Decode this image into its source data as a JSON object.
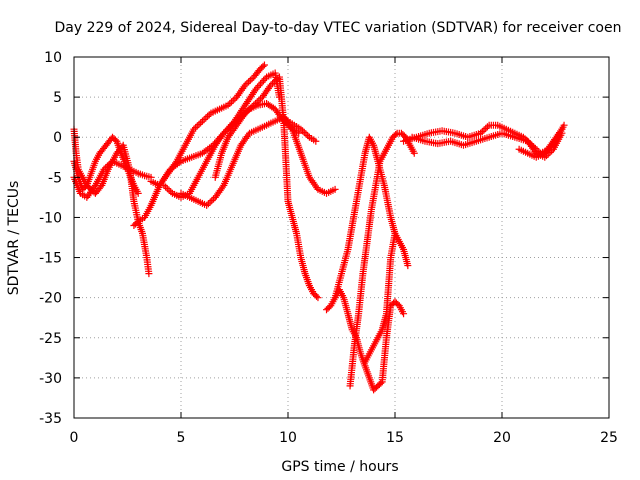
{
  "chart_data": {
    "type": "scatter",
    "title": "Day 229 of 2024, Sidereal Day-to-day VTEC variation (SDTVAR) for receiver coen",
    "xlabel": "GPS time / hours",
    "ylabel": "SDTVAR / TECUs",
    "xlim": [
      0,
      25
    ],
    "ylim": [
      -35,
      10
    ],
    "xticks": [
      0,
      5,
      10,
      15,
      20,
      25
    ],
    "yticks": [
      10,
      5,
      0,
      -5,
      -10,
      -15,
      -20,
      -25,
      -30,
      -35
    ],
    "xtick_labels": [
      "0",
      "5",
      "10",
      "15",
      "20",
      "25"
    ],
    "ytick_labels": [
      "10",
      "5",
      "0",
      "-5",
      "-10",
      "-15",
      "-20",
      "-25",
      "-30",
      "-35"
    ],
    "grid": true,
    "marker": "plus",
    "color": "#ff0000",
    "series": [
      {
        "name": "s1",
        "x": [
          0.0,
          0.1,
          0.2,
          0.4,
          0.6,
          0.8,
          1.0,
          1.3,
          1.6,
          2.0,
          2.3,
          2.6,
          2.8,
          3.0,
          3.2,
          3.4,
          3.5
        ],
        "y": [
          1.0,
          -2.0,
          -4.0,
          -5.0,
          -6.0,
          -6.5,
          -7.0,
          -6.0,
          -4.0,
          -2.0,
          -1.0,
          -4.0,
          -8.0,
          -10.5,
          -12.0,
          -15.0,
          -17.0
        ]
      },
      {
        "name": "s2",
        "x": [
          0.0,
          0.2,
          0.4,
          0.6,
          0.8,
          1.0,
          1.2,
          1.5,
          1.8,
          2.0,
          2.2,
          2.5,
          2.8,
          3.0
        ],
        "y": [
          -3.0,
          -5.0,
          -6.5,
          -6.0,
          -4.5,
          -3.0,
          -2.0,
          -1.0,
          0.0,
          -0.5,
          -2.0,
          -4.0,
          -6.0,
          -7.0
        ]
      },
      {
        "name": "s3",
        "x": [
          0.0,
          0.3,
          0.6,
          1.0,
          1.4,
          1.8,
          2.2,
          2.6,
          3.0,
          3.3,
          3.6
        ],
        "y": [
          -5.0,
          -7.0,
          -7.5,
          -6.0,
          -4.0,
          -3.0,
          -3.5,
          -4.0,
          -4.5,
          -4.8,
          -5.0
        ]
      },
      {
        "name": "s4",
        "x": [
          2.8,
          3.0,
          3.3,
          3.6,
          4.0,
          4.4,
          4.8,
          5.2,
          5.6,
          6.0,
          6.4,
          6.8,
          7.2,
          7.6,
          8.0,
          8.4,
          8.7,
          8.9
        ],
        "y": [
          -11.0,
          -10.5,
          -10.0,
          -8.5,
          -6.0,
          -4.5,
          -3.0,
          -1.0,
          1.0,
          2.0,
          3.0,
          3.5,
          4.0,
          5.0,
          6.5,
          7.5,
          8.5,
          9.0
        ]
      },
      {
        "name": "s5",
        "x": [
          3.6,
          4.0,
          4.5,
          5.0,
          5.5,
          6.0,
          6.5,
          7.0,
          7.5,
          8.0,
          8.5,
          9.0,
          9.4,
          9.6
        ],
        "y": [
          -5.5,
          -6.0,
          -4.0,
          -3.0,
          -2.5,
          -2.0,
          -1.0,
          0.5,
          2.0,
          4.0,
          6.0,
          7.5,
          8.0,
          5.0
        ]
      },
      {
        "name": "s6",
        "x": [
          4.2,
          4.6,
          5.0,
          5.4,
          5.8,
          6.2,
          6.6,
          7.0,
          7.4,
          7.8,
          8.2,
          8.6,
          9.0,
          9.4,
          9.8,
          10.2,
          10.5
        ],
        "y": [
          -6.0,
          -7.0,
          -7.5,
          -7.0,
          -5.0,
          -3.0,
          -1.0,
          0.5,
          1.5,
          2.5,
          3.5,
          4.0,
          4.2,
          3.5,
          2.0,
          1.0,
          0.5
        ]
      },
      {
        "name": "s7",
        "x": [
          5.0,
          5.4,
          5.8,
          6.2,
          6.6,
          7.0,
          7.4,
          7.8,
          8.2,
          8.6,
          9.0,
          9.4,
          9.8,
          10.2,
          10.6,
          11.0,
          11.4,
          11.8,
          12.2
        ],
        "y": [
          -7.0,
          -7.5,
          -8.0,
          -8.5,
          -7.5,
          -6.0,
          -3.5,
          -1.0,
          0.5,
          1.0,
          1.5,
          2.0,
          2.5,
          1.0,
          -2.0,
          -5.0,
          -6.5,
          -7.0,
          -6.5
        ]
      },
      {
        "name": "s8",
        "x": [
          6.6,
          6.9,
          7.2,
          7.6,
          8.0,
          8.4,
          8.8,
          9.2,
          9.6,
          9.8,
          10.0,
          10.2,
          10.4,
          10.6,
          10.8,
          11.0,
          11.2,
          11.4
        ],
        "y": [
          -5.0,
          -2.0,
          0.0,
          1.5,
          3.0,
          4.0,
          5.0,
          6.5,
          7.5,
          2.0,
          -8.0,
          -10.0,
          -12.0,
          -15.0,
          -17.0,
          -18.5,
          -19.5,
          -20.0
        ]
      },
      {
        "name": "s9",
        "x": [
          9.8,
          10.0,
          10.3,
          10.6,
          11.0,
          11.3
        ],
        "y": [
          2.5,
          2.0,
          1.5,
          1.0,
          0.0,
          -0.5
        ]
      },
      {
        "name": "s10",
        "x": [
          11.8,
          12.0,
          12.2,
          12.4,
          12.6,
          12.8,
          13.0,
          13.2,
          13.4,
          13.6,
          13.8,
          14.0,
          14.2,
          14.4,
          14.6,
          14.8,
          15.0,
          15.2,
          15.4
        ],
        "y": [
          -21.5,
          -21.0,
          -20.0,
          -19.0,
          -20.0,
          -22.0,
          -24.0,
          -25.0,
          -27.0,
          -28.5,
          -30.0,
          -31.5,
          -31.0,
          -30.5,
          -25.0,
          -21.0,
          -20.5,
          -21.0,
          -22.0
        ]
      },
      {
        "name": "s11",
        "x": [
          12.2,
          12.5,
          12.8,
          13.0,
          13.2,
          13.4,
          13.6,
          13.8,
          14.0,
          14.2,
          14.5,
          14.8,
          15.0,
          15.2,
          15.4,
          15.6
        ],
        "y": [
          -20.0,
          -17.0,
          -14.0,
          -11.0,
          -8.0,
          -5.0,
          -2.0,
          0.0,
          -1.0,
          -3.0,
          -6.0,
          -10.0,
          -12.0,
          -13.0,
          -14.0,
          -16.0
        ]
      },
      {
        "name": "s12",
        "x": [
          12.9,
          13.1,
          13.3,
          13.5,
          13.7,
          13.9,
          14.1,
          14.3,
          14.5,
          14.7,
          14.9,
          15.1,
          15.3,
          15.5,
          15.7,
          15.9
        ],
        "y": [
          -31.0,
          -26.0,
          -22.0,
          -17.0,
          -13.0,
          -9.0,
          -6.0,
          -3.0,
          -2.0,
          -1.0,
          0.0,
          0.5,
          0.5,
          0.0,
          -1.0,
          -2.0
        ]
      },
      {
        "name": "s13",
        "x": [
          13.6,
          13.8,
          14.0,
          14.2,
          14.4,
          14.6,
          14.8,
          15.0
        ],
        "y": [
          -28.0,
          -27.0,
          -26.0,
          -25.0,
          -24.0,
          -22.0,
          -15.0,
          -12.0
        ]
      },
      {
        "name": "s14",
        "x": [
          15.4,
          16.0,
          16.6,
          17.2,
          17.8,
          18.4,
          19.0,
          19.4,
          19.8,
          20.2,
          20.6,
          21.0,
          21.4,
          21.8,
          22.2,
          22.6,
          22.9
        ],
        "y": [
          -0.5,
          0.0,
          0.5,
          0.8,
          0.5,
          0.0,
          0.5,
          1.5,
          1.5,
          1.0,
          0.5,
          0.0,
          -1.0,
          -2.0,
          -1.5,
          0.0,
          1.5
        ]
      },
      {
        "name": "s15",
        "x": [
          15.8,
          16.4,
          17.0,
          17.6,
          18.2,
          18.8,
          19.4,
          20.0,
          20.6,
          21.2,
          21.6,
          22.0,
          22.4,
          22.8
        ],
        "y": [
          0.0,
          -0.5,
          -0.8,
          -0.5,
          -1.0,
          -0.5,
          0.0,
          0.5,
          0.0,
          -0.5,
          -2.0,
          -2.5,
          -1.5,
          0.5
        ]
      },
      {
        "name": "s16",
        "x": [
          20.8,
          21.2,
          21.6,
          22.0,
          22.4,
          22.8
        ],
        "y": [
          -1.5,
          -2.0,
          -2.5,
          -2.0,
          -0.5,
          1.0
        ]
      }
    ]
  }
}
